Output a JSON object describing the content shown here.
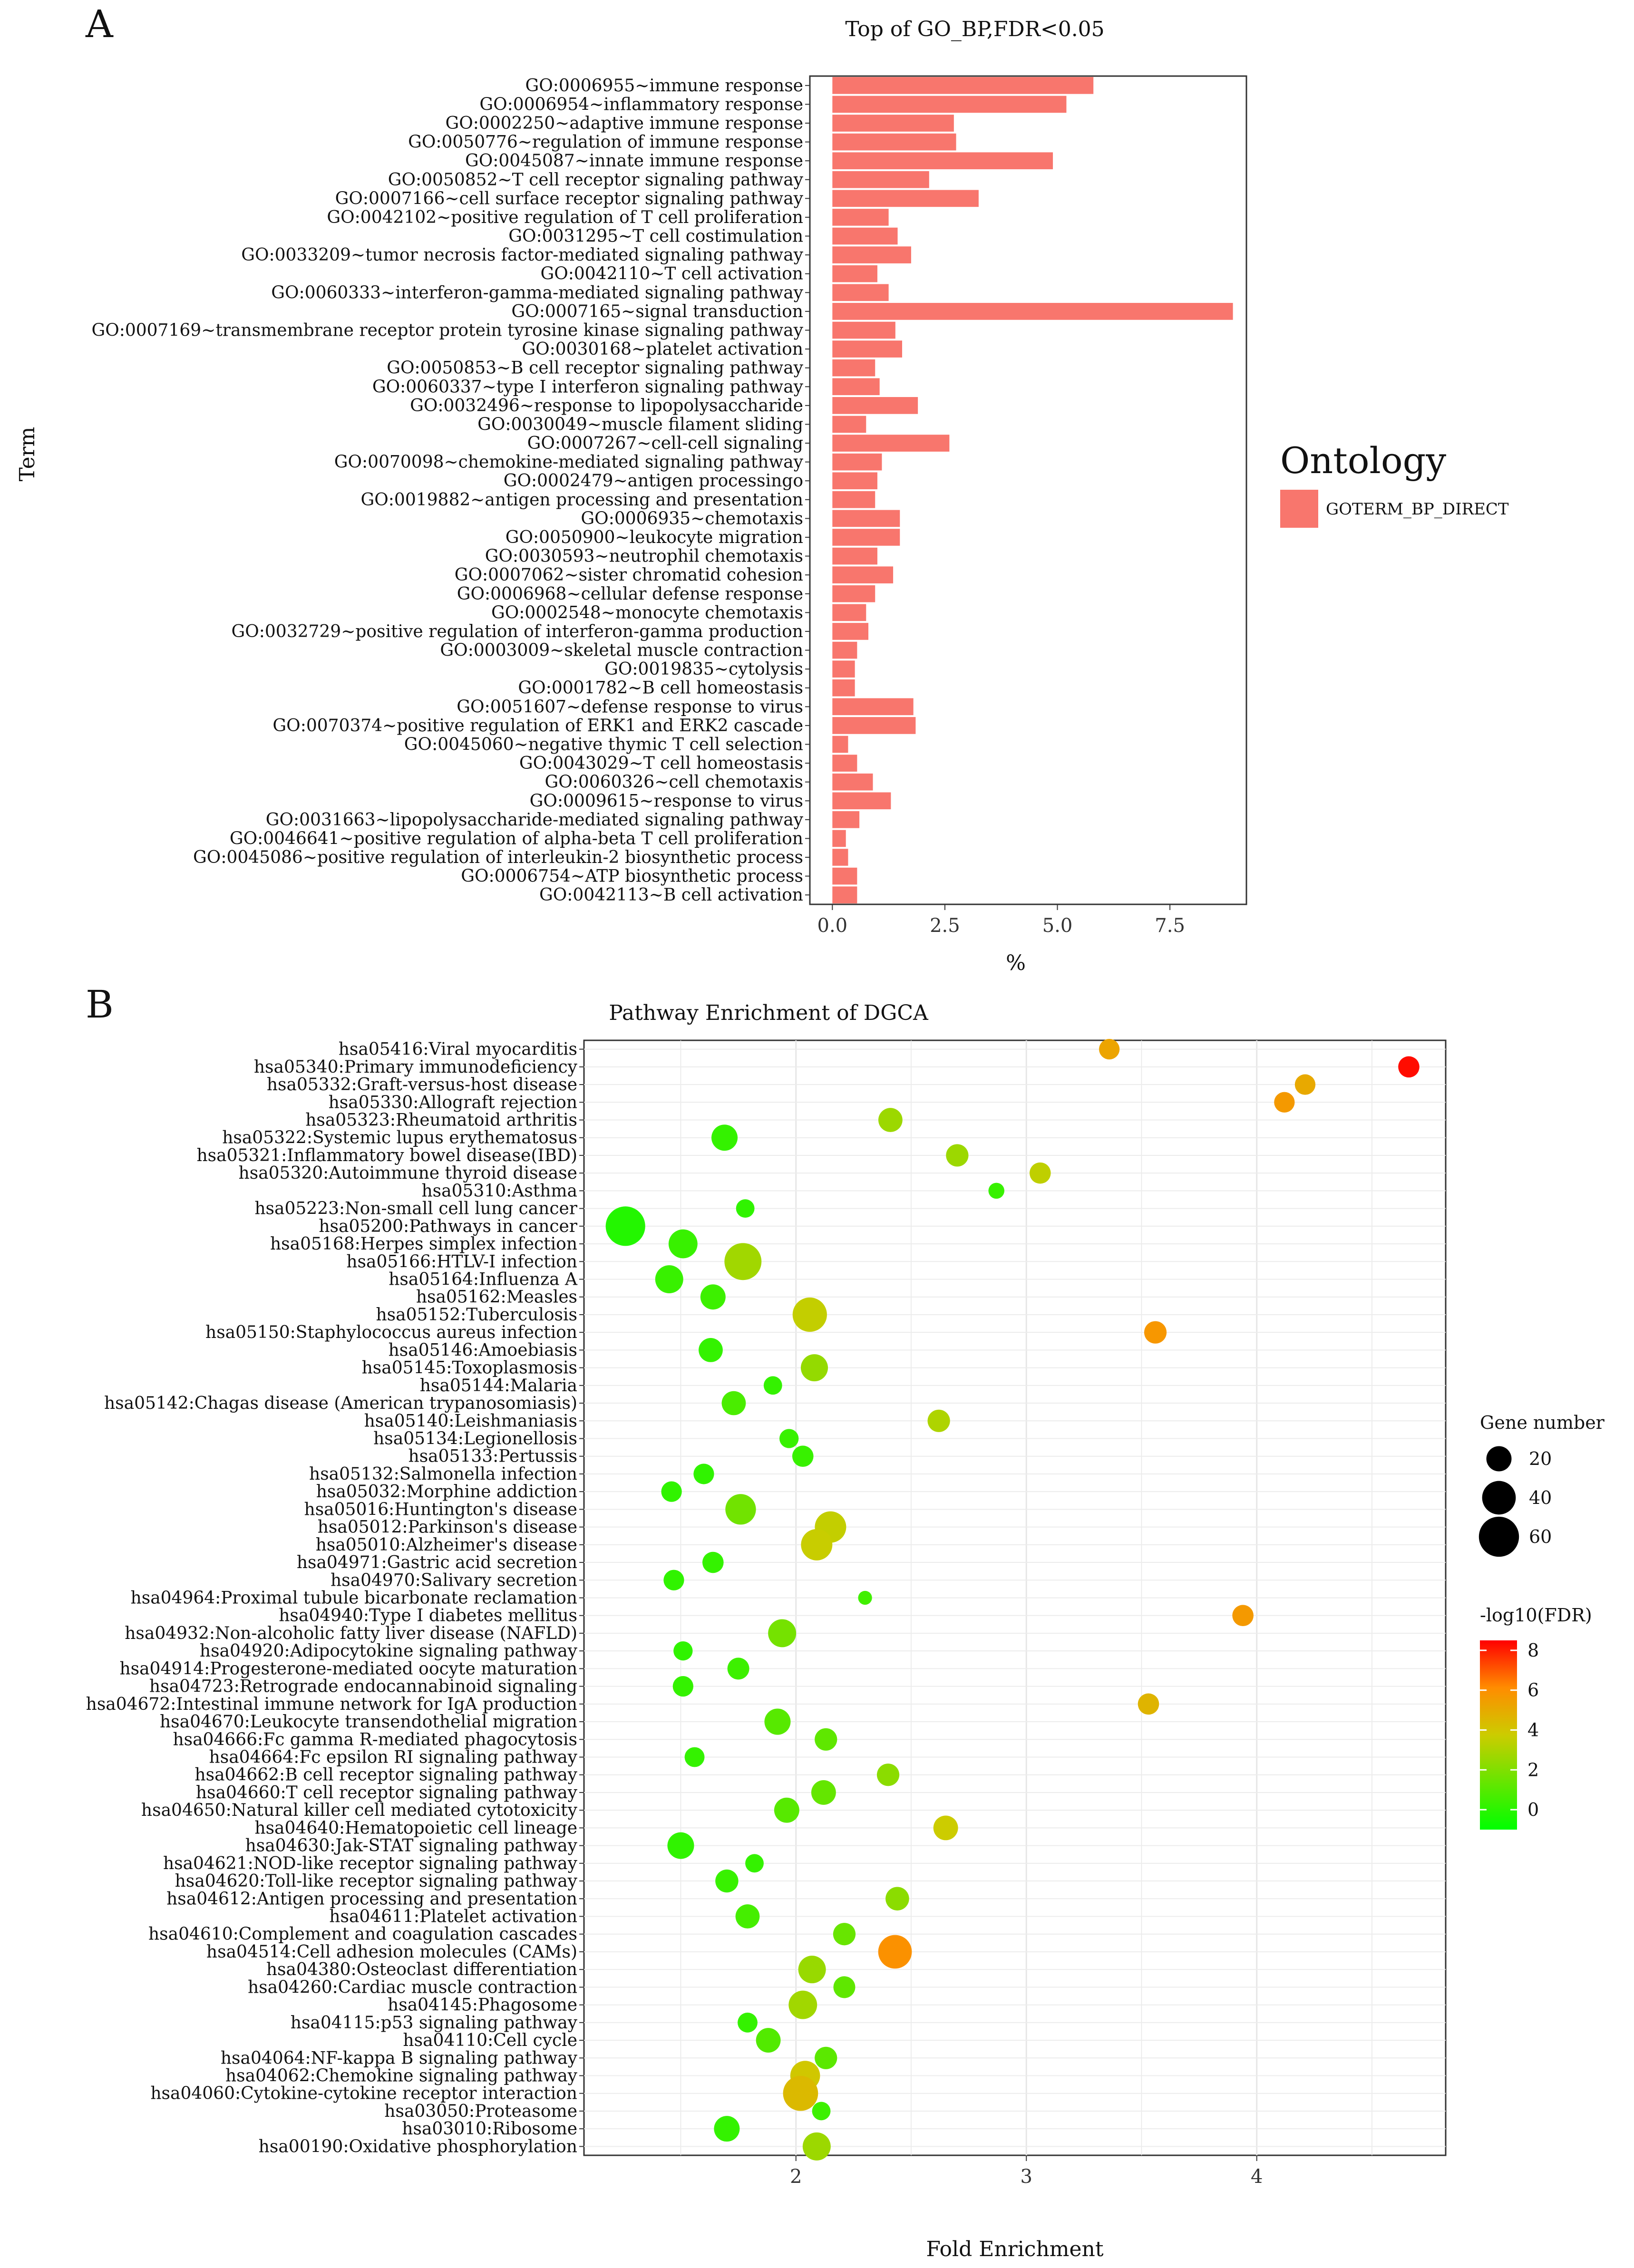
{
  "chart_data": [
    {
      "panel": "A",
      "type": "bar",
      "orientation": "horizontal",
      "title": "Top of GO_BP,FDR<0.05",
      "xlabel": "%",
      "ylabel": "Term",
      "xlim": [
        -0.5,
        9.2
      ],
      "xticks": [
        0.0,
        2.5,
        5.0,
        7.5
      ],
      "xtick_labels": [
        "0.0",
        "2.5",
        "5.0",
        "7.5"
      ],
      "grid": false,
      "bar_color": "#F8766D",
      "legend": {
        "title": "Ontology",
        "entries": [
          "GOTERM_BP_DIRECT"
        ],
        "position": "right"
      },
      "categories": [
        "GO:0006955~immune response",
        "GO:0006954~inflammatory response",
        "GO:0002250~adaptive immune response",
        "GO:0050776~regulation of immune response",
        "GO:0045087~innate immune response",
        "GO:0050852~T cell receptor signaling pathway",
        "GO:0007166~cell surface receptor signaling pathway",
        "GO:0042102~positive regulation of T cell proliferation",
        "GO:0031295~T cell costimulation",
        "GO:0033209~tumor necrosis factor-mediated signaling pathway",
        "GO:0042110~T cell activation",
        "GO:0060333~interferon-gamma-mediated signaling pathway",
        "GO:0007165~signal transduction",
        "GO:0007169~transmembrane receptor protein tyrosine kinase signaling pathway",
        "GO:0030168~platelet activation",
        "GO:0050853~B cell receptor signaling pathway",
        "GO:0060337~type I interferon signaling pathway",
        "GO:0032496~response to lipopolysaccharide",
        "GO:0030049~muscle filament sliding",
        "GO:0007267~cell-cell signaling",
        "GO:0070098~chemokine-mediated signaling pathway",
        "GO:0002479~antigen processingo",
        "GO:0019882~antigen processing and presentation",
        "GO:0006935~chemotaxis",
        "GO:0050900~leukocyte migration",
        "GO:0030593~neutrophil chemotaxis",
        "GO:0007062~sister chromatid cohesion",
        "GO:0006968~cellular defense response",
        "GO:0002548~monocyte chemotaxis",
        "GO:0032729~positive regulation of interferon-gamma production",
        "GO:0003009~skeletal muscle contraction",
        "GO:0019835~cytolysis",
        "GO:0001782~B cell homeostasis",
        "GO:0051607~defense response to virus",
        "GO:0070374~positive regulation of ERK1 and ERK2 cascade",
        "GO:0045060~negative thymic T cell selection",
        "GO:0043029~T cell homeostasis",
        "GO:0060326~cell chemotaxis",
        "GO:0009615~response to virus",
        "GO:0031663~lipopolysaccharide-mediated signaling pathway",
        "GO:0046641~positive regulation of alpha-beta T cell proliferation",
        "GO:0045086~positive regulation of interleukin-2 biosynthetic process",
        "GO:0006754~ATP biosynthetic process",
        "GO:0042113~B cell activation"
      ],
      "values": [
        5.8,
        5.2,
        2.7,
        2.75,
        4.9,
        2.15,
        3.25,
        1.25,
        1.45,
        1.75,
        1.0,
        1.25,
        8.9,
        1.4,
        1.55,
        0.95,
        1.05,
        1.9,
        0.75,
        2.6,
        1.1,
        1.0,
        0.95,
        1.5,
        1.5,
        1.0,
        1.35,
        0.95,
        0.75,
        0.8,
        0.55,
        0.5,
        0.5,
        1.8,
        1.85,
        0.35,
        0.55,
        0.9,
        1.3,
        0.6,
        0.3,
        0.35,
        0.55,
        0.55
      ]
    },
    {
      "panel": "B",
      "type": "scatter",
      "title": "Pathway Enrichment of DGCA",
      "xlabel": "Fold Enrichment",
      "ylabel": "",
      "xlim": [
        1.08,
        4.82
      ],
      "xticks": [
        2,
        3,
        4
      ],
      "xtick_labels": [
        "2",
        "3",
        "4"
      ],
      "grid": true,
      "legend": {
        "position": "right",
        "size_title": "Gene number",
        "size_entries": [
          20,
          40,
          60
        ],
        "color_title": "-log10(FDR)",
        "color_range": [
          -1,
          8.5
        ],
        "color_ticks": [
          0,
          2,
          4,
          6,
          8
        ],
        "color_low": "#00FF00",
        "color_mid": "#CCCC00",
        "color_high": "#FF0000"
      },
      "categories": [
        "hsa05416:Viral myocarditis",
        "hsa05340:Primary immunodeficiency",
        "hsa05332:Graft-versus-host disease",
        "hsa05330:Allograft rejection",
        "hsa05323:Rheumatoid arthritis",
        "hsa05322:Systemic lupus erythematosus",
        "hsa05321:Inflammatory bowel disease(IBD)",
        "hsa05320:Autoimmune thyroid disease",
        "hsa05310:Asthma",
        "hsa05223:Non-small cell lung cancer",
        "hsa05200:Pathways in cancer",
        "hsa05168:Herpes simplex infection",
        "hsa05166:HTLV-I infection",
        "hsa05164:Influenza A",
        "hsa05162:Measles",
        "hsa05152:Tuberculosis",
        "hsa05150:Staphylococcus aureus infection",
        "hsa05146:Amoebiasis",
        "hsa05145:Toxoplasmosis",
        "hsa05144:Malaria",
        "hsa05142:Chagas disease (American trypanosomiasis)",
        "hsa05140:Leishmaniasis",
        "hsa05134:Legionellosis",
        "hsa05133:Pertussis",
        "hsa05132:Salmonella infection",
        "hsa05032:Morphine addiction",
        "hsa05016:Huntington's disease",
        "hsa05012:Parkinson's disease",
        "hsa05010:Alzheimer's disease",
        "hsa04971:Gastric acid secretion",
        "hsa04970:Salivary secretion",
        "hsa04964:Proximal tubule bicarbonate reclamation",
        "hsa04940:Type I diabetes mellitus",
        "hsa04932:Non-alcoholic fatty liver disease (NAFLD)",
        "hsa04920:Adipocytokine signaling pathway",
        "hsa04914:Progesterone-mediated oocyte maturation",
        "hsa04723:Retrograde endocannabinoid signaling",
        "hsa04672:Intestinal immune network for IgA production",
        "hsa04670:Leukocyte transendothelial migration",
        "hsa04666:Fc gamma R-mediated phagocytosis",
        "hsa04664:Fc epsilon RI signaling pathway",
        "hsa04662:B cell receptor signaling pathway",
        "hsa04660:T cell receptor signaling pathway",
        "hsa04650:Natural killer cell mediated cytotoxicity",
        "hsa04640:Hematopoietic cell lineage",
        "hsa04630:Jak-STAT signaling pathway",
        "hsa04621:NOD-like receptor signaling pathway",
        "hsa04620:Toll-like receptor signaling pathway",
        "hsa04612:Antigen processing and presentation",
        "hsa04611:Platelet activation",
        "hsa04610:Complement and coagulation cascades",
        "hsa04514:Cell adhesion molecules (CAMs)",
        "hsa04380:Osteoclast differentiation",
        "hsa04260:Cardiac muscle contraction",
        "hsa04145:Phagosome",
        "hsa04115:p53 signaling pathway",
        "hsa04110:Cell cycle",
        "hsa04064:NF-kappa B signaling pathway",
        "hsa04062:Chemokine signaling pathway",
        "hsa04060:Cytokine-cytokine receptor interaction",
        "hsa03050:Proteasome",
        "hsa03010:Ribosome",
        "hsa00190:Oxidative phosphorylation"
      ],
      "x": [
        3.36,
        4.66,
        4.21,
        4.12,
        2.41,
        1.69,
        2.7,
        3.06,
        2.87,
        1.78,
        1.26,
        1.51,
        1.77,
        1.45,
        1.64,
        2.06,
        3.56,
        1.63,
        2.08,
        1.9,
        1.73,
        2.62,
        1.97,
        2.03,
        1.6,
        1.46,
        1.76,
        2.15,
        2.09,
        1.64,
        1.47,
        2.3,
        3.94,
        1.94,
        1.51,
        1.75,
        1.51,
        3.53,
        1.92,
        2.13,
        1.56,
        2.4,
        2.12,
        1.96,
        2.65,
        1.5,
        1.82,
        1.7,
        2.44,
        1.79,
        2.21,
        2.43,
        2.07,
        2.21,
        2.03,
        1.79,
        1.88,
        2.13,
        2.04,
        2.02,
        2.11,
        1.7,
        2.09
      ],
      "gene_number": [
        12,
        13,
        12,
        12,
        18,
        22,
        15,
        13,
        6,
        9,
        58,
        28,
        50,
        26,
        20,
        42,
        15,
        18,
        24,
        9,
        18,
        15,
        10,
        13,
        12,
        12,
        32,
        34,
        34,
        13,
        12,
        4,
        13,
        26,
        10,
        14,
        12,
        13,
        22,
        15,
        11,
        15,
        19,
        20,
        19,
        23,
        9,
        16,
        17,
        18,
        15,
        40,
        25,
        14,
        27,
        11,
        19,
        15,
        30,
        44,
        9,
        21,
        26
      ],
      "neg_log10_fdr": [
        5.2,
        8.3,
        5.0,
        5.6,
        2.6,
        0.2,
        2.6,
        3.4,
        0.3,
        0.1,
        -0.2,
        0.3,
        2.7,
        0.3,
        0.4,
        3.5,
        5.7,
        0.2,
        2.4,
        0.2,
        0.7,
        3.0,
        0.3,
        0.3,
        0.1,
        0.1,
        1.6,
        3.5,
        3.6,
        0.2,
        0.1,
        0.5,
        5.6,
        1.7,
        0.1,
        0.4,
        0.2,
        4.6,
        1.0,
        1.2,
        0.2,
        2.2,
        1.3,
        1.0,
        3.7,
        0.1,
        0.2,
        0.3,
        2.2,
        0.6,
        1.4,
        5.9,
        2.5,
        1.2,
        2.7,
        0.2,
        0.9,
        1.1,
        3.9,
        4.4,
        0.4,
        0.2,
        2.6
      ]
    }
  ]
}
